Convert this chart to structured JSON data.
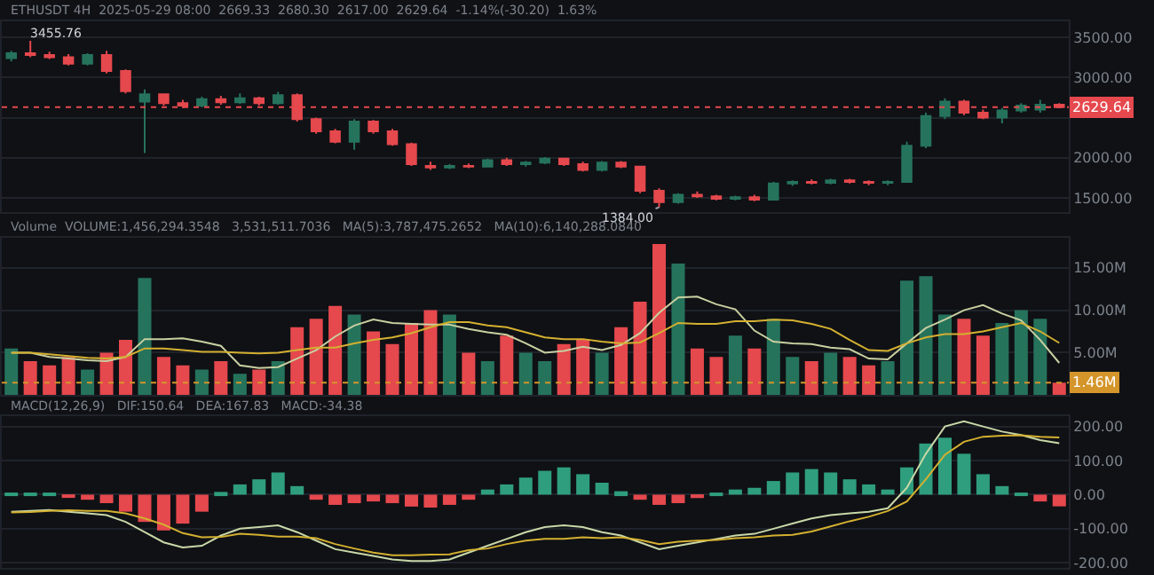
{
  "chart_data": [
    {
      "type": "candlestick",
      "title": "ETHUSDT 4H  2025-05-29 08:00  2669.33  2680.30  2617.00  2629.64  -1.14%(-30.20)  1.63%",
      "categories": [
        null,
        null,
        null,
        null,
        null,
        null,
        null,
        null,
        null,
        null,
        null,
        null,
        null,
        null,
        null,
        null,
        null,
        null,
        null,
        null,
        null,
        null,
        null,
        null,
        null,
        null,
        null,
        null,
        null,
        null,
        null,
        null,
        null,
        null,
        null,
        null,
        null,
        null,
        null,
        null,
        null,
        null,
        null,
        null,
        null,
        null,
        null,
        null,
        null,
        null,
        null,
        null,
        null,
        null,
        null,
        null
      ],
      "ohlc": [
        [
          3240,
          3330,
          3200,
          3300
        ],
        [
          3300,
          3455.76,
          3250,
          3280
        ],
        [
          3280,
          3320,
          3230,
          3250
        ],
        [
          3250,
          3290,
          3150,
          3170
        ],
        [
          3170,
          3300,
          3150,
          3280
        ],
        [
          3280,
          3330,
          3050,
          3080
        ],
        [
          3080,
          3100,
          2800,
          2830
        ],
        [
          2700,
          2850,
          2060,
          2790
        ],
        [
          2790,
          2800,
          2650,
          2680
        ],
        [
          2680,
          2720,
          2620,
          2650
        ],
        [
          2650,
          2760,
          2630,
          2730
        ],
        [
          2730,
          2770,
          2660,
          2690
        ],
        [
          2690,
          2800,
          2670,
          2740
        ],
        [
          2740,
          2760,
          2650,
          2680
        ],
        [
          2680,
          2820,
          2660,
          2780
        ],
        [
          2780,
          2800,
          2450,
          2480
        ],
        [
          2480,
          2500,
          2300,
          2330
        ],
        [
          2330,
          2360,
          2180,
          2200
        ],
        [
          2200,
          2480,
          2100,
          2450
        ],
        [
          2450,
          2470,
          2300,
          2330
        ],
        [
          2330,
          2360,
          2150,
          2170
        ],
        [
          2170,
          2190,
          1900,
          1920
        ],
        [
          1900,
          1950,
          1850,
          1880
        ],
        [
          1880,
          1920,
          1860,
          1900
        ],
        [
          1900,
          1930,
          1870,
          1890
        ],
        [
          1890,
          1990,
          1880,
          1970
        ],
        [
          1970,
          2000,
          1900,
          1920
        ],
        [
          1920,
          1960,
          1890,
          1940
        ],
        [
          1940,
          2010,
          1920,
          1990
        ],
        [
          1990,
          2000,
          1900,
          1920
        ],
        [
          1920,
          1950,
          1830,
          1850
        ],
        [
          1850,
          1960,
          1830,
          1940
        ],
        [
          1940,
          1960,
          1870,
          1890
        ],
        [
          1890,
          1900,
          1560,
          1590
        ],
        [
          1590,
          1620,
          1384,
          1450
        ],
        [
          1450,
          1560,
          1430,
          1540
        ],
        [
          1540,
          1580,
          1500,
          1520
        ],
        [
          1520,
          1540,
          1470,
          1490
        ],
        [
          1490,
          1530,
          1470,
          1510
        ],
        [
          1510,
          1540,
          1460,
          1480
        ],
        [
          1480,
          1700,
          1470,
          1680
        ],
        [
          1680,
          1720,
          1650,
          1700
        ],
        [
          1700,
          1730,
          1670,
          1690
        ],
        [
          1690,
          1740,
          1670,
          1720
        ],
        [
          1720,
          1740,
          1680,
          1700
        ],
        [
          1700,
          1720,
          1660,
          1690
        ],
        [
          1690,
          1720,
          1660,
          1700
        ],
        [
          1700,
          2200,
          1690,
          2150
        ],
        [
          2150,
          2560,
          2120,
          2520
        ],
        [
          2520,
          2740,
          2480,
          2700
        ],
        [
          2700,
          2720,
          2530,
          2560
        ],
        [
          2560,
          2600,
          2480,
          2500
        ],
        [
          2500,
          2620,
          2430,
          2590
        ],
        [
          2590,
          2680,
          2560,
          2650
        ],
        [
          2600,
          2720,
          2560,
          2660
        ],
        [
          2660,
          2680.3,
          2617.0,
          2629.64
        ]
      ],
      "colors": [
        "#26735c",
        "#e5484d",
        "#e5484d",
        "#e5484d",
        "#26735c",
        "#e5484d",
        "#e5484d",
        "#26735c",
        "#e5484d",
        "#e5484d",
        "#26735c",
        "#e5484d",
        "#26735c",
        "#e5484d",
        "#26735c",
        "#e5484d",
        "#e5484d",
        "#e5484d",
        "#26735c",
        "#e5484d",
        "#e5484d",
        "#e5484d",
        "#e5484d",
        "#26735c",
        "#e5484d",
        "#26735c",
        "#e5484d",
        "#26735c",
        "#26735c",
        "#e5484d",
        "#e5484d",
        "#26735c",
        "#e5484d",
        "#e5484d",
        "#e5484d",
        "#26735c",
        "#e5484d",
        "#e5484d",
        "#26735c",
        "#e5484d",
        "#26735c",
        "#26735c",
        "#e5484d",
        "#26735c",
        "#e5484d",
        "#e5484d",
        "#26735c",
        "#26735c",
        "#26735c",
        "#26735c",
        "#e5484d",
        "#e5484d",
        "#26735c",
        "#26735c",
        "#26735c",
        "#e5484d"
      ],
      "ylim": [
        1330,
        3700
      ],
      "yticks": [
        {
          "value": 1500,
          "label": "1500.00"
        },
        {
          "value": 2000,
          "label": "2000.00"
        },
        {
          "value": 2500,
          "label": null
        },
        {
          "value": 3000,
          "label": "3000.00"
        },
        {
          "value": 3500,
          "label": "3500.00"
        }
      ],
      "ref_lines": [
        {
          "axis": "y",
          "value": 2629.64,
          "label": "2629.64",
          "color": "#e5484d",
          "line_style": "dotted"
        }
      ],
      "annotations": [
        "3455.76",
        "1384.00"
      ],
      "tick_labels": "y",
      "grid": "y"
    },
    {
      "type": "bar",
      "title": "Volume  VOLUME:1,456,294.3548",
      "annotations": [
        "3,531,511.7036",
        "MA(5):3,787,475.2652",
        "MA(10):6,140,288.0840"
      ],
      "categories": [
        null,
        null,
        null,
        null,
        null,
        null,
        null,
        null,
        null,
        null,
        null,
        null,
        null,
        null,
        null,
        null,
        null,
        null,
        null,
        null,
        null,
        null,
        null,
        null,
        null,
        null,
        null,
        null,
        null,
        null,
        null,
        null,
        null,
        null,
        null,
        null,
        null,
        null,
        null,
        null,
        null,
        null,
        null,
        null,
        null,
        null,
        null,
        null,
        null,
        null,
        null,
        null,
        null,
        null,
        null,
        null
      ],
      "series": [
        {
          "type": "bar",
          "values": [
            5.5,
            4,
            3.5,
            4.5,
            3,
            5,
            6.5,
            13.8,
            4.5,
            3.5,
            3,
            4,
            2.5,
            3,
            4,
            8,
            9,
            10.5,
            9.5,
            7.5,
            6,
            8.5,
            10,
            9.5,
            5,
            4,
            7,
            5,
            4,
            6,
            6.5,
            5,
            8,
            11,
            17.8,
            15.5,
            5.5,
            4.5,
            7,
            5.5,
            9,
            4.5,
            4,
            5,
            4.5,
            3.5,
            4,
            13.5,
            14,
            9.5,
            9,
            7,
            8.5,
            10,
            9,
            1.46
          ],
          "colors": [
            "#26735c",
            "#e5484d",
            "#e5484d",
            "#e5484d",
            "#26735c",
            "#e5484d",
            "#e5484d",
            "#26735c",
            "#e5484d",
            "#e5484d",
            "#26735c",
            "#e5484d",
            "#26735c",
            "#e5484d",
            "#26735c",
            "#e5484d",
            "#e5484d",
            "#e5484d",
            "#26735c",
            "#e5484d",
            "#e5484d",
            "#e5484d",
            "#e5484d",
            "#26735c",
            "#e5484d",
            "#26735c",
            "#e5484d",
            "#26735c",
            "#26735c",
            "#e5484d",
            "#e5484d",
            "#26735c",
            "#e5484d",
            "#e5484d",
            "#e5484d",
            "#26735c",
            "#e5484d",
            "#e5484d",
            "#26735c",
            "#e5484d",
            "#26735c",
            "#26735c",
            "#e5484d",
            "#26735c",
            "#e5484d",
            "#e5484d",
            "#26735c",
            "#26735c",
            "#26735c",
            "#26735c",
            "#e5484d",
            "#e5484d",
            "#26735c",
            "#26735c",
            "#26735c",
            "#e5484d"
          ]
        },
        {
          "type": "line",
          "color": "#c9cfa0",
          "values": [
            5,
            5,
            4.5,
            4.3,
            4.1,
            4,
            4.5,
            6.6,
            6.6,
            6.7,
            6.3,
            5.8,
            3.5,
            3.2,
            3.3,
            4.3,
            5.3,
            6.9,
            8.2,
            8.9,
            8.5,
            8.4,
            8.3,
            8.3,
            7.8,
            7.4,
            7.1,
            6.1,
            5,
            5.2,
            5.7,
            5.3,
            5.9,
            7.3,
            9.7,
            11.5,
            11.6,
            10.7,
            10.1,
            7.6,
            6.3,
            6.1,
            6,
            5.6,
            5.4,
            4.3,
            4.2,
            6.1,
            7.9,
            8.9,
            10,
            10.6,
            9.6,
            8.8,
            6.5,
            3.79
          ]
        },
        {
          "type": "line",
          "color": "#d4b030",
          "values": [
            5,
            5,
            4.8,
            4.6,
            4.4,
            4.3,
            4.5,
            5.5,
            5.5,
            5.3,
            5.1,
            5.1,
            5,
            4.9,
            5,
            5.3,
            5.6,
            5.6,
            6.1,
            6.5,
            6.8,
            7.3,
            8,
            8.6,
            8.6,
            8.2,
            8,
            7.4,
            6.8,
            6.6,
            6.6,
            6.3,
            6.1,
            6.2,
            7.3,
            8.5,
            8.4,
            8.4,
            8.7,
            8.7,
            8.9,
            8.8,
            8.4,
            7.8,
            6.5,
            5.3,
            5.2,
            6.1,
            6.8,
            7.2,
            7.2,
            7.5,
            8,
            8.5,
            7.5,
            6.14
          ]
        }
      ],
      "ylim": [
        0,
        18.5
      ],
      "yticks": [
        {
          "value": 5,
          "label": "5.00M"
        },
        {
          "value": 10,
          "label": "10.00M"
        },
        {
          "value": 15,
          "label": "15.00M"
        }
      ],
      "ref_lines": [
        {
          "axis": "y",
          "value": 1.46,
          "label": "1.46M",
          "color": "#d4952a",
          "line_style": "dotted"
        }
      ],
      "tick_labels": "y",
      "grid": "y"
    },
    {
      "type": "bar",
      "title": "MACD(12,26,9)",
      "annotations": [
        "DIF:150.64",
        "DEA:167.83",
        "MACD:-34.38"
      ],
      "categories": [
        null,
        null,
        null,
        null,
        null,
        null,
        null,
        null,
        null,
        null,
        null,
        null,
        null,
        null,
        null,
        null,
        null,
        null,
        null,
        null,
        null,
        null,
        null,
        null,
        null,
        null,
        null,
        null,
        null,
        null,
        null,
        null,
        null,
        null,
        null,
        null,
        null,
        null,
        null,
        null,
        null,
        null,
        null,
        null,
        null,
        null,
        null,
        null,
        null,
        null,
        null,
        null,
        null,
        null,
        null,
        null
      ],
      "series": [
        {
          "type": "bar",
          "values": [
            3,
            5,
            6,
            -8,
            -15,
            -25,
            -50,
            -80,
            -105,
            -85,
            -50,
            8,
            30,
            45,
            65,
            25,
            -15,
            -30,
            -25,
            -20,
            -25,
            -35,
            -38,
            -30,
            -15,
            15,
            30,
            50,
            70,
            80,
            60,
            35,
            10,
            -15,
            -30,
            -25,
            -10,
            5,
            15,
            20,
            40,
            65,
            75,
            65,
            45,
            30,
            15,
            80,
            150,
            167,
            120,
            60,
            25,
            3,
            -20,
            -34.38
          ],
          "colors": [
            "#2f9e7e",
            "#2f9e7e",
            "#2f9e7e",
            "#e5484d",
            "#e5484d",
            "#e5484d",
            "#e5484d",
            "#e5484d",
            "#e5484d",
            "#e5484d",
            "#e5484d",
            "#2f9e7e",
            "#2f9e7e",
            "#2f9e7e",
            "#2f9e7e",
            "#2f9e7e",
            "#e5484d",
            "#e5484d",
            "#e5484d",
            "#e5484d",
            "#e5484d",
            "#e5484d",
            "#e5484d",
            "#e5484d",
            "#e5484d",
            "#2f9e7e",
            "#2f9e7e",
            "#2f9e7e",
            "#2f9e7e",
            "#2f9e7e",
            "#2f9e7e",
            "#2f9e7e",
            "#2f9e7e",
            "#e5484d",
            "#e5484d",
            "#e5484d",
            "#e5484d",
            "#2f9e7e",
            "#2f9e7e",
            "#2f9e7e",
            "#2f9e7e",
            "#2f9e7e",
            "#2f9e7e",
            "#2f9e7e",
            "#2f9e7e",
            "#2f9e7e",
            "#2f9e7e",
            "#2f9e7e",
            "#2f9e7e",
            "#2f9e7e",
            "#2f9e7e",
            "#2f9e7e",
            "#2f9e7e",
            "#2f9e7e",
            "#e5484d",
            "#e5484d"
          ]
        },
        {
          "type": "line",
          "color": "#c9d8a8",
          "values": [
            -50,
            -48,
            -45,
            -50,
            -55,
            -60,
            -80,
            -110,
            -140,
            -155,
            -150,
            -120,
            -100,
            -95,
            -90,
            -110,
            -135,
            -160,
            -170,
            -180,
            -190,
            -195,
            -195,
            -190,
            -170,
            -150,
            -130,
            -110,
            -95,
            -90,
            -95,
            -110,
            -120,
            -140,
            -160,
            -150,
            -140,
            -130,
            -120,
            -115,
            -100,
            -85,
            -70,
            -60,
            -55,
            -50,
            -40,
            20,
            120,
            200,
            215,
            200,
            185,
            175,
            160,
            150.64
          ]
        },
        {
          "type": "line",
          "color": "#d4b030",
          "values": [
            -52,
            -51,
            -48,
            -46,
            -48,
            -48,
            -55,
            -70,
            -88,
            -113,
            -125,
            -124,
            -115,
            -118,
            -123,
            -123,
            -128,
            -145,
            -158,
            -170,
            -178,
            -178,
            -176,
            -175,
            -163,
            -158,
            -145,
            -135,
            -130,
            -130,
            -125,
            -128,
            -125,
            -133,
            -145,
            -138,
            -135,
            -133,
            -128,
            -125,
            -120,
            -118,
            -108,
            -93,
            -78,
            -65,
            -48,
            -20,
            45,
            117,
            155,
            170,
            173,
            174,
            170,
            167.83
          ]
        }
      ],
      "ylim": [
        -215,
        230
      ],
      "yticks": [
        {
          "value": -200,
          "label": "-200.00"
        },
        {
          "value": -100,
          "label": "-100.00"
        },
        {
          "value": 0,
          "label": "0.00"
        },
        {
          "value": 100,
          "label": "100.00"
        },
        {
          "value": 200,
          "label": "200.00"
        }
      ],
      "tick_labels": "y",
      "grid": "y"
    }
  ]
}
